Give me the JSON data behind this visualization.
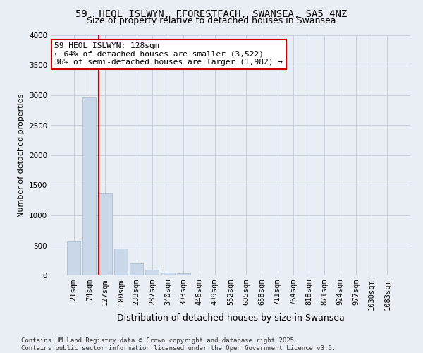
{
  "title_line1": "59, HEOL ISLWYN, FFORESTFACH, SWANSEA, SA5 4NZ",
  "title_line2": "Size of property relative to detached houses in Swansea",
  "xlabel": "Distribution of detached houses by size in Swansea",
  "ylabel": "Number of detached properties",
  "categories": [
    "21sqm",
    "74sqm",
    "127sqm",
    "180sqm",
    "233sqm",
    "287sqm",
    "340sqm",
    "393sqm",
    "446sqm",
    "499sqm",
    "552sqm",
    "605sqm",
    "658sqm",
    "711sqm",
    "764sqm",
    "818sqm",
    "871sqm",
    "924sqm",
    "977sqm",
    "1030sqm",
    "1083sqm"
  ],
  "values": [
    560,
    2960,
    1360,
    450,
    200,
    95,
    45,
    35,
    0,
    0,
    0,
    0,
    0,
    0,
    0,
    0,
    0,
    0,
    0,
    0,
    0
  ],
  "bar_color": "#c8d8e8",
  "bar_edge_color": "#a0b8cc",
  "vline_color": "#cc0000",
  "vline_x_index": 2,
  "annotation_text": "59 HEOL ISLWYN: 128sqm\n← 64% of detached houses are smaller (3,522)\n36% of semi-detached houses are larger (1,982) →",
  "annotation_box_edgecolor": "#cc0000",
  "annotation_box_facecolor": "#ffffff",
  "ylim": [
    0,
    4000
  ],
  "yticks": [
    0,
    500,
    1000,
    1500,
    2000,
    2500,
    3000,
    3500,
    4000
  ],
  "grid_color": "#c8d0dc",
  "bg_color": "#e8eef4",
  "footnote": "Contains HM Land Registry data © Crown copyright and database right 2025.\nContains public sector information licensed under the Open Government Licence v3.0.",
  "title1_fontsize": 10,
  "title2_fontsize": 9,
  "xlabel_fontsize": 9,
  "ylabel_fontsize": 8,
  "tick_fontsize": 7.5,
  "annotation_fontsize": 8,
  "footnote_fontsize": 6.5
}
